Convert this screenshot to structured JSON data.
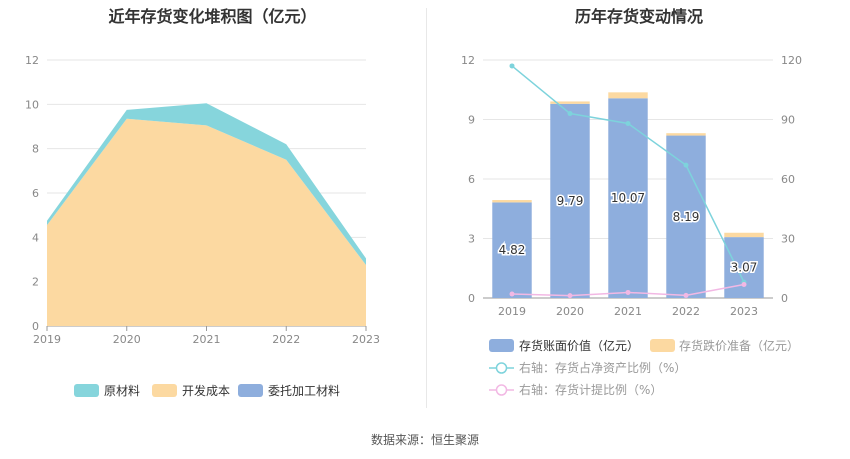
{
  "source_label": "数据来源：恒生聚源",
  "chart_data": [
    {
      "type": "area",
      "title": "近年存货变化堆积图（亿元）",
      "x": [
        "2019",
        "2020",
        "2021",
        "2022",
        "2023"
      ],
      "ylim": [
        0,
        12
      ],
      "yticks": [
        0,
        2,
        4,
        6,
        8,
        10,
        12
      ],
      "grid": true,
      "legend_position": "bottom",
      "series": [
        {
          "name": "原材料",
          "color": "#86d5dc",
          "values": [
            0.2,
            0.4,
            1.0,
            0.7,
            0.3
          ]
        },
        {
          "name": "开发成本",
          "color": "#fcd9a1",
          "values": [
            4.55,
            9.35,
            9.05,
            7.5,
            2.75
          ]
        },
        {
          "name": "委托加工材料",
          "color": "#8eaedd",
          "values": [
            0,
            0,
            0,
            0,
            0
          ]
        }
      ]
    },
    {
      "type": "bar+line",
      "title": "历年存货变动情况",
      "x": [
        "2019",
        "2020",
        "2021",
        "2022",
        "2023"
      ],
      "ylim_left": [
        0,
        12
      ],
      "yticks_left": [
        0,
        3,
        6,
        9,
        12
      ],
      "ylim_right": [
        0,
        120
      ],
      "yticks_right": [
        0,
        30,
        60,
        90,
        120
      ],
      "grid": true,
      "legend_position": "bottom",
      "bars": [
        {
          "name": "存货账面价值（亿元）",
          "color": "#8eaedd",
          "values": [
            4.82,
            9.79,
            10.07,
            8.19,
            3.07
          ],
          "labels": [
            "4.82",
            "9.79",
            "10.07",
            "8.19",
            "3.07"
          ]
        },
        {
          "name": "存货跌价准备（亿元）",
          "color": "#fcd9a1",
          "values": [
            0.12,
            0.12,
            0.3,
            0.12,
            0.22
          ]
        }
      ],
      "lines": [
        {
          "name": "右轴：存货占净资产比例（%）",
          "color": "#7dd3dc",
          "values": [
            117,
            93,
            88,
            67,
            8
          ]
        },
        {
          "name": "右轴：存货计提比例（%）",
          "color": "#f2b8e4",
          "values": [
            2,
            1.2,
            2.8,
            1.3,
            6.8
          ]
        }
      ]
    }
  ]
}
